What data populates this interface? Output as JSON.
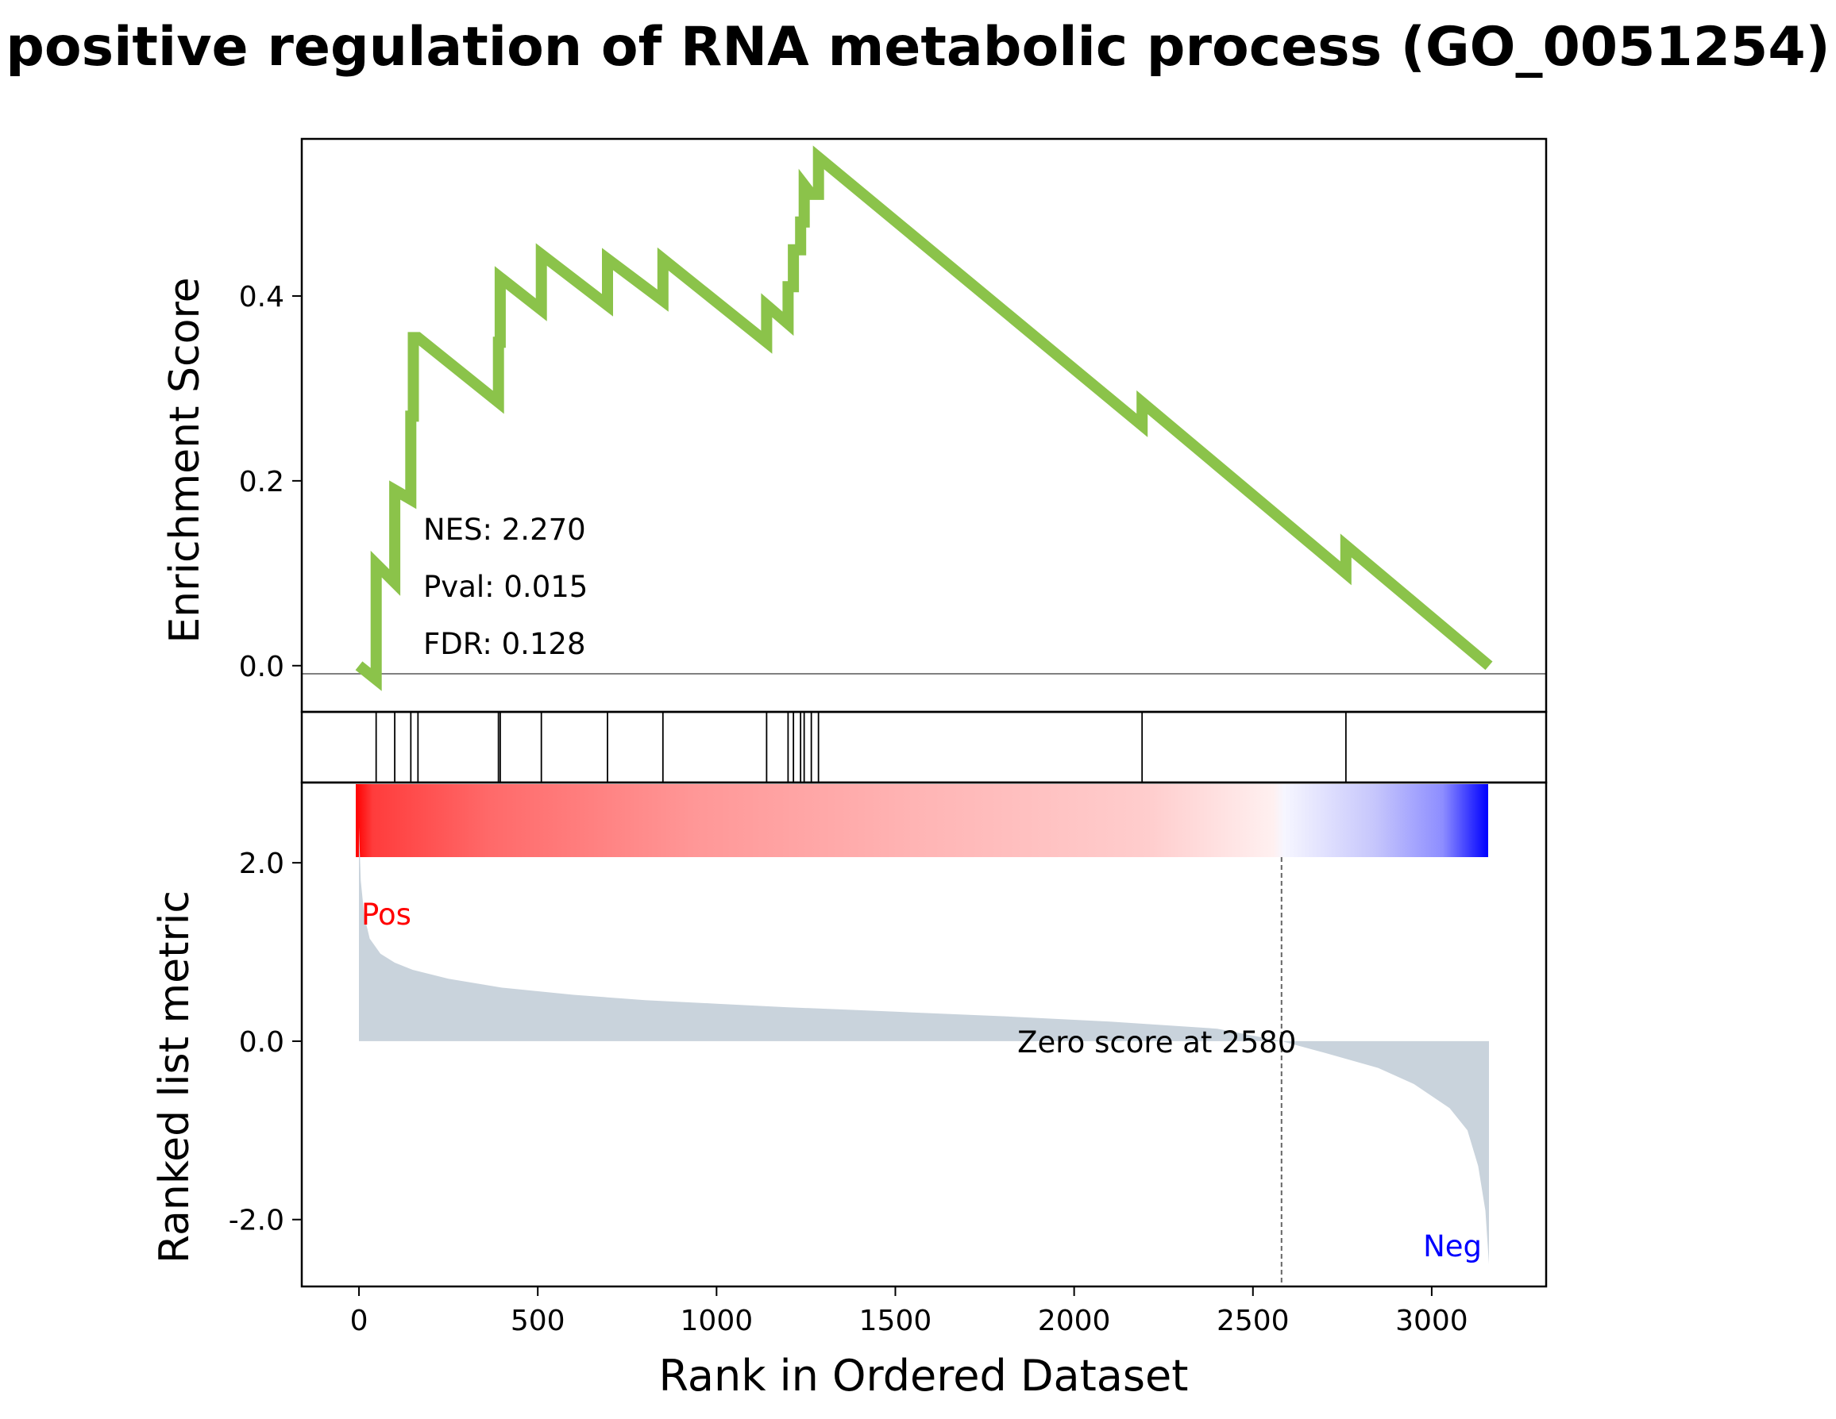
{
  "chart_data": {
    "type": "line",
    "title": "positive regulation of RNA metabolic process (GO_0051254)",
    "xlabel": "Rank in Ordered Dataset",
    "xlim": [
      -160,
      3320
    ],
    "x_ticks": [
      0,
      500,
      1000,
      1500,
      2000,
      2500,
      3000
    ],
    "x_tick_labels": [
      "0",
      "500",
      "1000",
      "1500",
      "2000",
      "2500",
      "3000"
    ],
    "enrichment_panel": {
      "ylabel": "Enrichment Score",
      "ylim": [
        -0.05,
        0.57
      ],
      "y_ticks": [
        0.0,
        0.2,
        0.4
      ],
      "y_tick_labels": [
        "0.0",
        "0.2",
        "0.4"
      ],
      "line_color": "#8bc34a",
      "series": [
        {
          "x": [
            0,
            48,
            48,
            100,
            100,
            145,
            145,
            152,
            152,
            165,
            165,
            390,
            390,
            395,
            395,
            510,
            510,
            695,
            695,
            850,
            850,
            1140,
            1140,
            1200,
            1200,
            1215,
            1215,
            1235,
            1235,
            1245,
            1245,
            1265,
            1265,
            1285,
            1285,
            2190,
            2190,
            2760,
            2760,
            3160
          ],
          "y": [
            0.0,
            -0.015,
            0.11,
            0.09,
            0.19,
            0.18,
            0.27,
            0.27,
            0.355,
            0.355,
            0.355,
            0.285,
            0.35,
            0.35,
            0.42,
            0.385,
            0.445,
            0.39,
            0.44,
            0.395,
            0.44,
            0.35,
            0.39,
            0.37,
            0.41,
            0.41,
            0.45,
            0.45,
            0.48,
            0.48,
            0.52,
            0.51,
            0.51,
            0.51,
            0.55,
            0.26,
            0.285,
            0.1,
            0.13,
            0.0
          ]
        }
      ],
      "annotations": [
        "NES: 2.270",
        "Pval: 0.015",
        "FDR: 0.128"
      ]
    },
    "hits_panel": {
      "hit_positions": [
        48,
        100,
        145,
        165,
        390,
        395,
        510,
        695,
        850,
        1140,
        1200,
        1215,
        1235,
        1245,
        1265,
        1285,
        2190,
        2760
      ]
    },
    "ranked_panel": {
      "ylabel": "Ranked list metric",
      "ylim": [
        -2.75,
        2.9
      ],
      "y_ticks": [
        2.0,
        0.0,
        -2.0
      ],
      "y_tick_labels": [
        "2.0",
        "0.0",
        "-2.0"
      ],
      "fill_color": "#c9d3dc",
      "x": [
        0,
        5,
        15,
        30,
        60,
        100,
        150,
        250,
        400,
        600,
        800,
        1000,
        1200,
        1500,
        1800,
        2100,
        2400,
        2580,
        2700,
        2850,
        2950,
        3050,
        3100,
        3130,
        3150,
        3160
      ],
      "y": [
        2.4,
        1.8,
        1.4,
        1.15,
        0.98,
        0.88,
        0.8,
        0.7,
        0.6,
        0.52,
        0.46,
        0.42,
        0.38,
        0.33,
        0.28,
        0.22,
        0.14,
        0.0,
        -0.13,
        -0.3,
        -0.48,
        -0.75,
        -1.0,
        -1.4,
        -1.9,
        -2.5
      ],
      "zero_cross": 2580,
      "zero_label": "Zero score at 2580",
      "pos_label": "Pos",
      "neg_label": "Neg",
      "pos_color": "#ff0000",
      "neg_color": "#0000ff"
    }
  }
}
